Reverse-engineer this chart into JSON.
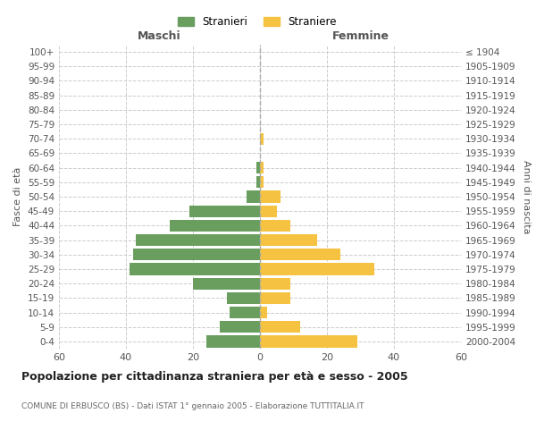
{
  "age_groups": [
    "0-4",
    "5-9",
    "10-14",
    "15-19",
    "20-24",
    "25-29",
    "30-34",
    "35-39",
    "40-44",
    "45-49",
    "50-54",
    "55-59",
    "60-64",
    "65-69",
    "70-74",
    "75-79",
    "80-84",
    "85-89",
    "90-94",
    "95-99",
    "100+"
  ],
  "birth_years": [
    "2000-2004",
    "1995-1999",
    "1990-1994",
    "1985-1989",
    "1980-1984",
    "1975-1979",
    "1970-1974",
    "1965-1969",
    "1960-1964",
    "1955-1959",
    "1950-1954",
    "1945-1949",
    "1940-1944",
    "1935-1939",
    "1930-1934",
    "1925-1929",
    "1920-1924",
    "1915-1919",
    "1910-1914",
    "1905-1909",
    "≤ 1904"
  ],
  "maschi": [
    16,
    12,
    9,
    10,
    20,
    39,
    38,
    37,
    27,
    21,
    4,
    1,
    1,
    0,
    0,
    0,
    0,
    0,
    0,
    0,
    0
  ],
  "femmine": [
    29,
    12,
    2,
    9,
    9,
    34,
    24,
    17,
    9,
    5,
    6,
    1,
    1,
    0,
    1,
    0,
    0,
    0,
    0,
    0,
    0
  ],
  "maschi_color": "#6a9e5f",
  "femmine_color": "#f5c242",
  "title": "Popolazione per cittadinanza straniera per età e sesso - 2005",
  "subtitle": "COMUNE DI ERBUSCO (BS) - Dati ISTAT 1° gennaio 2005 - Elaborazione TUTTITALIA.IT",
  "xlabel_left": "Maschi",
  "xlabel_right": "Femmine",
  "ylabel_left": "Fasce di età",
  "ylabel_right": "Anni di nascita",
  "legend_stranieri": "Stranieri",
  "legend_straniere": "Straniere",
  "xlim": 60,
  "background_color": "#ffffff",
  "grid_color": "#cccccc"
}
